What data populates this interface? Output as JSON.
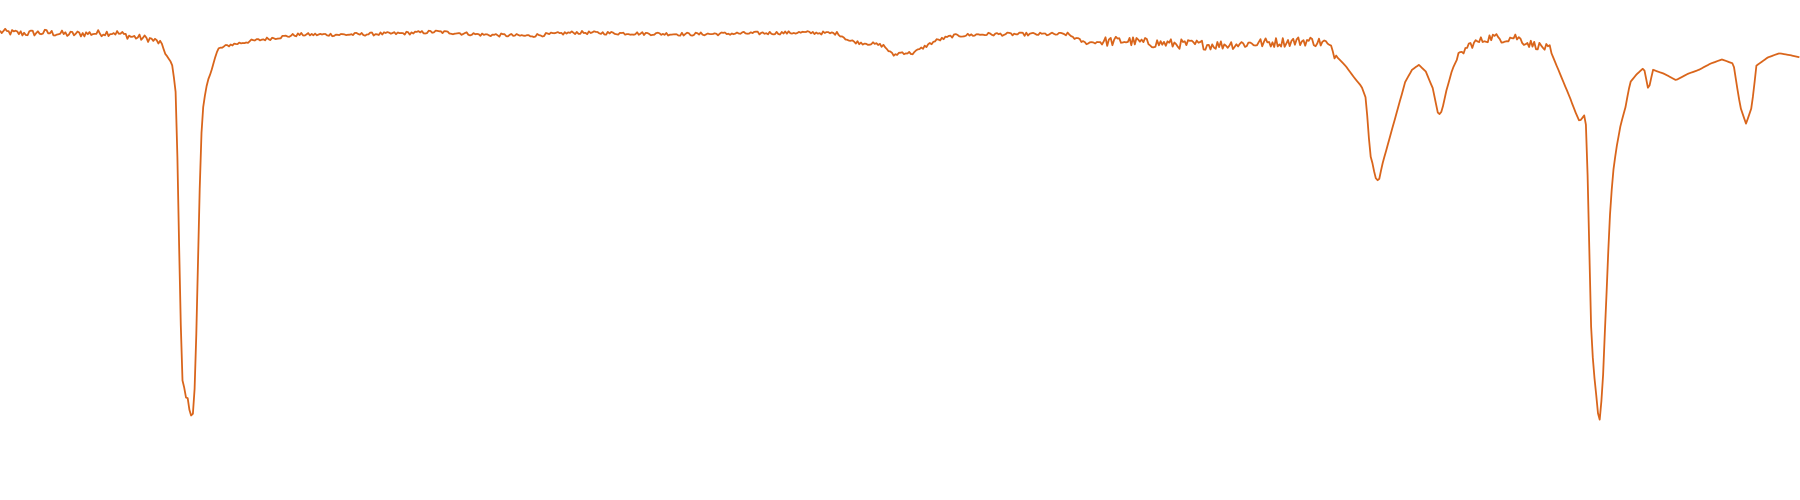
{
  "chart_data": {
    "type": "line",
    "title": "",
    "xlabel": "",
    "ylabel": "",
    "xlim": [
      0,
      1568
    ],
    "ylim": [
      0,
      1
    ],
    "grid": false,
    "axes_visible": false,
    "legend": "none",
    "colors": {
      "line": "#d9651b",
      "background": "#ffffff"
    },
    "series": [
      {
        "line_style": "solid",
        "keypoints": [
          [
            0,
            0.962
          ],
          [
            20,
            0.958
          ],
          [
            40,
            0.96
          ],
          [
            60,
            0.956
          ],
          [
            80,
            0.958
          ],
          [
            100,
            0.96
          ],
          [
            115,
            0.95
          ],
          [
            130,
            0.945
          ],
          [
            140,
            0.935
          ],
          [
            145,
            0.905
          ],
          [
            150,
            0.88
          ],
          [
            153,
            0.82
          ],
          [
            155,
            0.6
          ],
          [
            157,
            0.3
          ],
          [
            159,
            0.12
          ],
          [
            162,
            0.08
          ],
          [
            164,
            0.072
          ],
          [
            166,
            0.03
          ],
          [
            168,
            0.04
          ],
          [
            170,
            0.12
          ],
          [
            172,
            0.35
          ],
          [
            174,
            0.58
          ],
          [
            176,
            0.76
          ],
          [
            180,
            0.83
          ],
          [
            185,
            0.88
          ],
          [
            190,
            0.92
          ],
          [
            200,
            0.93
          ],
          [
            220,
            0.94
          ],
          [
            260,
            0.955
          ],
          [
            300,
            0.955
          ],
          [
            350,
            0.958
          ],
          [
            380,
            0.962
          ],
          [
            420,
            0.955
          ],
          [
            460,
            0.952
          ],
          [
            500,
            0.96
          ],
          [
            550,
            0.958
          ],
          [
            600,
            0.956
          ],
          [
            650,
            0.958
          ],
          [
            700,
            0.96
          ],
          [
            730,
            0.958
          ],
          [
            740,
            0.94
          ],
          [
            750,
            0.935
          ],
          [
            760,
            0.933
          ],
          [
            770,
            0.928
          ],
          [
            778,
            0.905
          ],
          [
            785,
            0.912
          ],
          [
            795,
            0.91
          ],
          [
            805,
            0.925
          ],
          [
            815,
            0.94
          ],
          [
            830,
            0.952
          ],
          [
            860,
            0.956
          ],
          [
            900,
            0.956
          ],
          [
            930,
            0.956
          ],
          [
            945,
            0.935
          ],
          [
            960,
            0.938
          ],
          [
            980,
            0.94
          ],
          [
            1000,
            0.935
          ],
          [
            1030,
            0.932
          ],
          [
            1060,
            0.93
          ],
          [
            1100,
            0.935
          ],
          [
            1140,
            0.94
          ],
          [
            1155,
            0.935
          ],
          [
            1165,
            0.9
          ],
          [
            1172,
            0.88
          ],
          [
            1180,
            0.85
          ],
          [
            1186,
            0.83
          ],
          [
            1190,
            0.8
          ],
          [
            1192,
            0.72
          ],
          [
            1194,
            0.66
          ],
          [
            1196,
            0.64
          ],
          [
            1198,
            0.61
          ],
          [
            1201,
            0.6
          ],
          [
            1204,
            0.64
          ],
          [
            1208,
            0.68
          ],
          [
            1212,
            0.72
          ],
          [
            1218,
            0.78
          ],
          [
            1224,
            0.84
          ],
          [
            1230,
            0.87
          ],
          [
            1236,
            0.882
          ],
          [
            1242,
            0.866
          ],
          [
            1248,
            0.826
          ],
          [
            1253,
            0.76
          ],
          [
            1256,
            0.77
          ],
          [
            1260,
            0.82
          ],
          [
            1265,
            0.87
          ],
          [
            1270,
            0.9
          ],
          [
            1280,
            0.93
          ],
          [
            1290,
            0.94
          ],
          [
            1300,
            0.95
          ],
          [
            1310,
            0.944
          ],
          [
            1320,
            0.95
          ],
          [
            1330,
            0.935
          ],
          [
            1340,
            0.928
          ],
          [
            1350,
            0.92
          ],
          [
            1356,
            0.88
          ],
          [
            1362,
            0.84
          ],
          [
            1368,
            0.8
          ],
          [
            1372,
            0.77
          ],
          [
            1376,
            0.745
          ],
          [
            1380,
            0.76
          ],
          [
            1382,
            0.73
          ],
          [
            1384,
            0.5
          ],
          [
            1386,
            0.25
          ],
          [
            1388,
            0.15
          ],
          [
            1390,
            0.1
          ],
          [
            1393,
            0.01
          ],
          [
            1396,
            0.1
          ],
          [
            1399,
            0.3
          ],
          [
            1402,
            0.5
          ],
          [
            1405,
            0.62
          ],
          [
            1408,
            0.68
          ],
          [
            1412,
            0.74
          ],
          [
            1416,
            0.78
          ],
          [
            1420,
            0.84
          ],
          [
            1426,
            0.86
          ],
          [
            1432,
            0.875
          ],
          [
            1436,
            0.82
          ],
          [
            1440,
            0.87
          ],
          [
            1450,
            0.86
          ],
          [
            1460,
            0.845
          ],
          [
            1470,
            0.86
          ],
          [
            1480,
            0.87
          ],
          [
            1490,
            0.885
          ],
          [
            1500,
            0.895
          ],
          [
            1510,
            0.885
          ],
          [
            1516,
            0.78
          ],
          [
            1521,
            0.74
          ],
          [
            1526,
            0.78
          ],
          [
            1530,
            0.88
          ],
          [
            1540,
            0.9
          ],
          [
            1550,
            0.91
          ],
          [
            1560,
            0.905
          ],
          [
            1568,
            0.9
          ]
        ],
        "noise_regions": [
          [
            0,
            140,
            0.008
          ],
          [
            140,
            1150,
            0.004
          ],
          [
            960,
            1165,
            0.012
          ],
          [
            1270,
            1350,
            0.01
          ]
        ]
      }
    ]
  }
}
